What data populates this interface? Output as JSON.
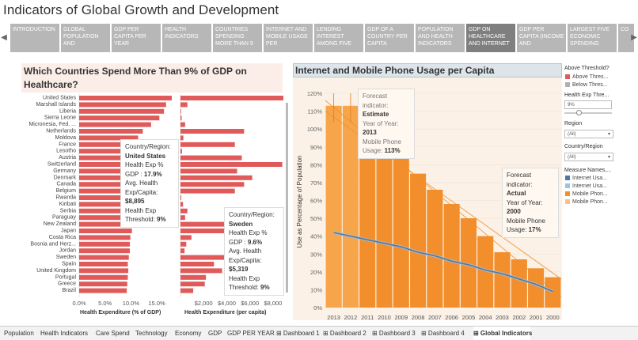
{
  "title": "Indicators of Global Growth and Development",
  "story_points": [
    {
      "label": "INTRODUCTION"
    },
    {
      "label": "GLOBAL POPULATION AND"
    },
    {
      "label": "GDP PER CAPITA PER YEAR"
    },
    {
      "label": "HEALTH INDICATORS"
    },
    {
      "label": "COUNTRIES SPENDING MORE THAN 9"
    },
    {
      "label": "INTERNET AND MOBILE USAGE PER"
    },
    {
      "label": "LENDING INTEREST AMONG FIVE"
    },
    {
      "label": "GDP OF A COUNTRY PER CAPITA"
    },
    {
      "label": "POPULATION AND HEALTH INDICATORS"
    },
    {
      "label": "GDP ON HEALTHCARE AND INTERNET"
    },
    {
      "label": "GDP PER CAPITA (INCOME AND"
    },
    {
      "label": "LARGEST FIVE ECONOMIC SPENDING"
    },
    {
      "label": "CO"
    }
  ],
  "nav": {
    "prev": "◀",
    "next": "▶"
  },
  "left_panel": {
    "title": "Which Countries Spend More Than 9% of GDP on Healthcare?",
    "bar_color": "#e05a5a",
    "axis1_label": "Health Expenditure (% of GDP)",
    "axis2_label": "Health Expenditure (per capita)",
    "tooltip1": {
      "country_label": "Country/Region:",
      "country": "United States",
      "exp_label": "Health Exp %",
      "gdp_label": "GDP :",
      "gdp": "17.9%",
      "avg_label": "Avg. Health Exp/Capita:",
      "avg": "$8,895",
      "thr_label": "Health Exp Threshold:",
      "thr": "9%"
    },
    "tooltip2": {
      "country_label": "Country/Region:",
      "country": "Sweden",
      "exp_label": "Health Exp %",
      "gdp_label": "GDP :",
      "gdp": "9.6%",
      "avg_label": "Avg. Health Exp/Capita:",
      "avg": "$5,319",
      "thr_label": "Health Exp Threshold:",
      "thr": "9%"
    }
  },
  "right_panel": {
    "title": "Internet and Mobile Phone Usage per Capita",
    "ylabel": "Use as Percentage of Population",
    "tooltip1": {
      "l1": "Forecast",
      "l2": "indicator:",
      "ind": "Estimate",
      "l3": "Year of Year:",
      "year": "2013",
      "l4": "Mobile Phone",
      "l5": "Usage:",
      "val": "113%"
    },
    "tooltip2": {
      "l1": "Forecast",
      "l2": "indicator:",
      "ind": "Actual",
      "l3": "Year of Year:",
      "year": "2000",
      "l4": "Mobile Phone",
      "l5": "Usage:",
      "val": "17%"
    }
  },
  "filters": {
    "above_threshold": "Above Threshold?",
    "above_items": [
      {
        "label": "Above Thres...",
        "color": "#e05a5a"
      },
      {
        "label": "Below Thres...",
        "color": "#b0b0b0"
      }
    ],
    "health_exp_title": "Health Exp Thre...",
    "health_exp_value": "9%",
    "region_title": "Region",
    "region_value": "(All)",
    "country_title": "Country/Region",
    "country_value": "(All)",
    "measure_title": "Measure Names,...",
    "measure_items": [
      {
        "label": "Internet Usa...",
        "color": "#4e79a7"
      },
      {
        "label": "Internet Usa...",
        "color": "#a0c0e0"
      },
      {
        "label": "Mobile Phon...",
        "color": "#f28e2b"
      },
      {
        "label": "Mobile Phon...",
        "color": "#ffbe7d"
      }
    ]
  },
  "sheet_tabs": [
    {
      "label": "Population"
    },
    {
      "label": "Health Indicators"
    },
    {
      "label": "Care Spend"
    },
    {
      "label": "Technology"
    },
    {
      "label": "Economy"
    },
    {
      "label": "GDP"
    },
    {
      "label": "GDP PER YEAR"
    },
    {
      "label": "Dashboard 1"
    },
    {
      "label": "Dashboard 2"
    },
    {
      "label": "Dashboard 3"
    },
    {
      "label": "Dashboard 4"
    },
    {
      "label": "Global Indicators"
    }
  ],
  "chart_data": [
    {
      "type": "bar",
      "title": "Which Countries Spend More Than 9% of GDP on Healthcare?",
      "xlabel": "Health Expenditure (% of GDP)",
      "xlim": [
        0,
        17.9
      ],
      "xticks": [
        "0.0%",
        "5.0%",
        "10.0%",
        "15.0%"
      ],
      "categories": [
        "United States",
        "Marshall Islands",
        "Liberia",
        "Sierra Leone",
        "Micronesia, Fed. ...",
        "Netherlands",
        "Moldova",
        "France",
        "Lesotho",
        "Austria",
        "Switzerland",
        "Germany",
        "Denmark",
        "Canada",
        "Belgium",
        "Rwanda",
        "Kiribati",
        "Serbia",
        "Paraguay",
        "New Zealand",
        "Japan",
        "Costa Rica",
        "Bosnia and Herz...",
        "Jordan",
        "Sweden",
        "Spain",
        "United Kingdom",
        "Portugal",
        "Greece",
        "Brazil"
      ],
      "values": [
        17.9,
        16.8,
        16.4,
        15.5,
        13.9,
        12.3,
        11.4,
        11.6,
        11.5,
        11.2,
        11.6,
        11.3,
        10.8,
        10.6,
        10.7,
        10.5,
        10.4,
        10.2,
        10.0,
        10.2,
        10.2,
        9.9,
        9.8,
        9.8,
        9.6,
        9.4,
        9.5,
        9.4,
        9.3,
        9.2
      ]
    },
    {
      "type": "bar",
      "xlabel": "Health Expenditure (per capita)",
      "xlim": [
        0,
        8895
      ],
      "xticks": [
        "$2,000",
        "$4,000",
        "$6,000",
        "$8,000"
      ],
      "categories": [
        "United States",
        "Marshall Islands",
        "Liberia",
        "Sierra Leone",
        "Micronesia, Fed. ...",
        "Netherlands",
        "Moldova",
        "France",
        "Lesotho",
        "Austria",
        "Switzerland",
        "Germany",
        "Denmark",
        "Canada",
        "Belgium",
        "Rwanda",
        "Kiribati",
        "Serbia",
        "Paraguay",
        "New Zealand",
        "Japan",
        "Costa Rica",
        "Bosnia and Herz...",
        "Jordan",
        "Sweden",
        "Spain",
        "United Kingdom",
        "Portugal",
        "Greece",
        "Brazil"
      ],
      "values": [
        8895,
        600,
        60,
        100,
        400,
        5500,
        250,
        4700,
        130,
        5300,
        8800,
        4900,
        6200,
        5500,
        4700,
        70,
        220,
        600,
        400,
        3800,
        3800,
        950,
        500,
        350,
        5319,
        2900,
        3600,
        2200,
        2100,
        1100
      ]
    },
    {
      "type": "bar",
      "title": "Internet and Mobile Phone Usage per Capita",
      "ylabel": "Use as Percentage of Population",
      "ylim": [
        0,
        120
      ],
      "yticks": [
        "0%",
        "10%",
        "20%",
        "30%",
        "40%",
        "50%",
        "60%",
        "70%",
        "80%",
        "90%",
        "100%",
        "110%",
        "120%"
      ],
      "categories": [
        "2013",
        "2012",
        "2011",
        "2010",
        "2009",
        "2008",
        "2007",
        "2006",
        "2005",
        "2004",
        "2003",
        "2002",
        "2001",
        "2000"
      ],
      "series": [
        {
          "name": "Mobile Phone Usage",
          "values": [
            113,
            113,
            94,
            90,
            84,
            75,
            66,
            58,
            50,
            40,
            31,
            27,
            22,
            17
          ]
        },
        {
          "name": "Internet Usage",
          "values": [
            42,
            40,
            38,
            36,
            34,
            31,
            29,
            26,
            24,
            21,
            19,
            16,
            13,
            9
          ]
        }
      ]
    }
  ]
}
